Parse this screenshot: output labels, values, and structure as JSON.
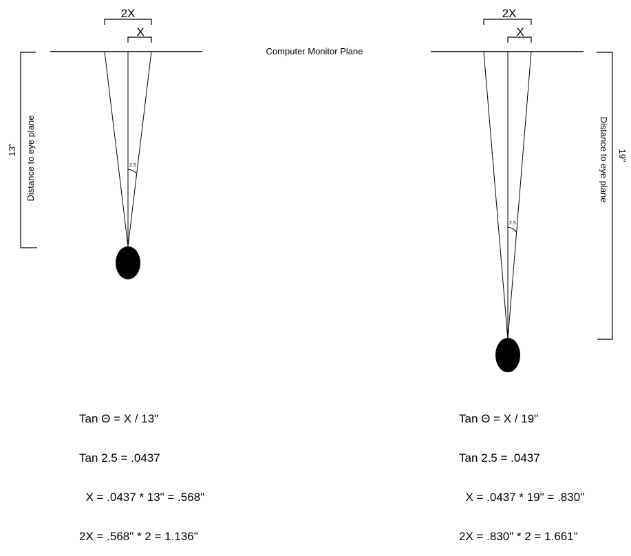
{
  "plane_label": "Computer Monitor Plane",
  "left": {
    "label_2x": "2X",
    "label_x": "X",
    "angle_label": "2.5",
    "distance_value": "13\"",
    "distance_text": "Distance to eye plane",
    "equations": [
      "Tan Θ = X / 13\"",
      "Tan 2.5 = .0437",
      "  X = .0437 * 13\" = .568\"",
      "2X = .568\" * 2 = 1.136\""
    ]
  },
  "right": {
    "label_2x": "2X",
    "label_x": "X",
    "angle_label": "2.5",
    "distance_value": "19\"",
    "distance_text": "Distance to eye plane",
    "equations": [
      "Tan Θ = X / 19\"",
      "Tan 2.5 = .0437",
      "  X = .0437 * 19\" = .830\"",
      "2X = .830\" * 2 = 1.661\""
    ]
  }
}
